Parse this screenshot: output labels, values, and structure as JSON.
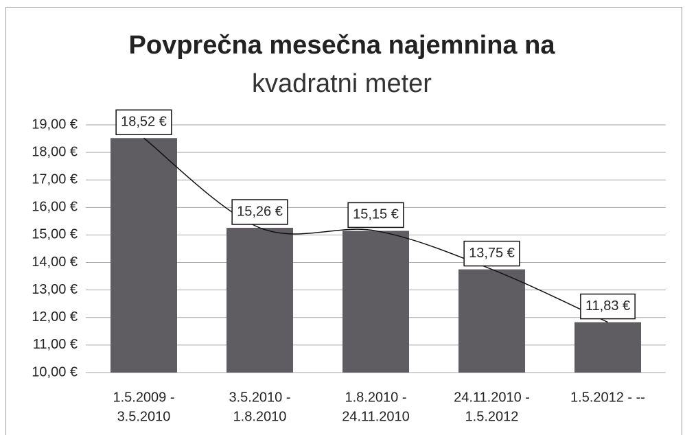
{
  "chart_data": {
    "type": "bar",
    "title": "Povprečna mesečna najemnina na",
    "subtitle": "kvadratni meter",
    "categories": [
      [
        "1.5.2009 -",
        "3.5.2010"
      ],
      [
        "3.5.2010 -",
        "1.8.2010"
      ],
      [
        "1.8.2010 -",
        "24.11.2010"
      ],
      [
        "24.11.2010 -",
        "1.5.2012"
      ],
      [
        "1.5.2012 - --"
      ]
    ],
    "values": [
      18.52,
      15.26,
      15.15,
      13.75,
      11.83
    ],
    "value_labels": [
      "18,52 €",
      "15,26 €",
      "15,15 €",
      "13,75 €",
      "11,83 €"
    ],
    "color": "#5f5d61",
    "trendline": true,
    "ylim": [
      10,
      19
    ],
    "yticks": [
      {
        "value": 10,
        "label": "10,00 €"
      },
      {
        "value": 11,
        "label": "11,00 €"
      },
      {
        "value": 12,
        "label": "12,00 €"
      },
      {
        "value": 13,
        "label": "13,00 €"
      },
      {
        "value": 14,
        "label": "14,00 €"
      },
      {
        "value": 15,
        "label": "15,00 €"
      },
      {
        "value": 16,
        "label": "16,00 €"
      },
      {
        "value": 17,
        "label": "17,00 €"
      },
      {
        "value": 18,
        "label": "18,00 €"
      },
      {
        "value": 19,
        "label": "19,00 €"
      }
    ],
    "grid": true
  }
}
